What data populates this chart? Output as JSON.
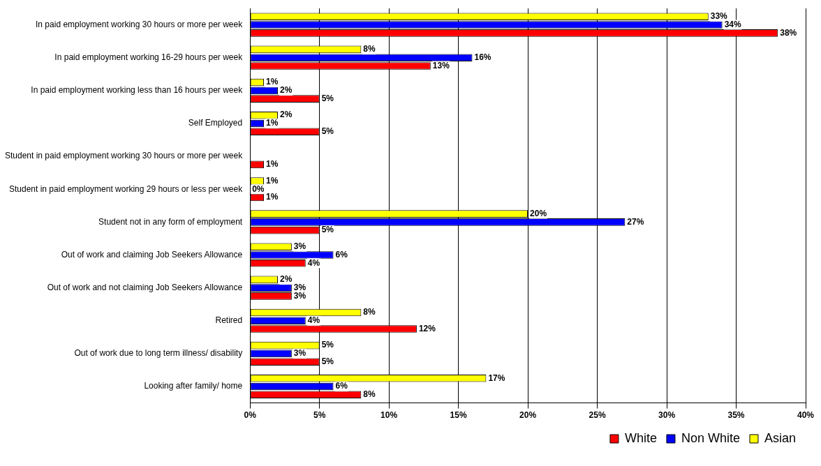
{
  "chart_data": {
    "type": "bar",
    "orientation": "horizontal",
    "categories": [
      "In paid employment working 30 hours or more per week",
      "In paid employment working 16-29 hours per week",
      "In paid employment working less than 16 hours per week",
      "Self Employed",
      "Student in paid employment working 30 hours or more per week",
      "Student in paid employment working 29 hours or less per week",
      "Student not in any form of employment",
      "Out of work and claiming Job Seekers Allowance",
      "Out of work and not claiming Job Seekers Allowance",
      "Retired",
      "Out of work due to long term illness/ disability",
      "Looking after family/ home"
    ],
    "series": [
      {
        "name": "White",
        "color": "#ff0000",
        "values": [
          38,
          13,
          5,
          5,
          1,
          1,
          5,
          4,
          3,
          12,
          5,
          8
        ],
        "value_labels": [
          "38%",
          "13%",
          "5%",
          "5%",
          "1%",
          "1%",
          "5%",
          "4%",
          "3%",
          "12%",
          "5%",
          "8%"
        ]
      },
      {
        "name": "Non White",
        "color": "#0000ff",
        "values": [
          34,
          16,
          2,
          1,
          null,
          0,
          27,
          6,
          3,
          4,
          3,
          6
        ],
        "value_labels": [
          "34%",
          "16%",
          "2%",
          "1%",
          null,
          "0%",
          "27%",
          "6%",
          "3%",
          "4%",
          "3%",
          "6%"
        ]
      },
      {
        "name": "Asian",
        "color": "#ffff00",
        "values": [
          33,
          8,
          1,
          2,
          null,
          1,
          20,
          3,
          2,
          8,
          5,
          17
        ],
        "value_labels": [
          "33%",
          "8%",
          "1%",
          "2%",
          null,
          "1%",
          "20%",
          "3%",
          "2%",
          "8%",
          "5%",
          "17%"
        ]
      }
    ],
    "xlim": [
      0,
      40
    ],
    "xticks": [
      {
        "value": 0,
        "label": "0%"
      },
      {
        "value": 5,
        "label": "5%"
      },
      {
        "value": 10,
        "label": "10%"
      },
      {
        "value": 15,
        "label": "15%"
      },
      {
        "value": 20,
        "label": "20%"
      },
      {
        "value": 25,
        "label": "25%"
      },
      {
        "value": 30,
        "label": "30%"
      },
      {
        "value": 35,
        "label": "35%"
      },
      {
        "value": 40,
        "label": "40%"
      }
    ],
    "grid": "x",
    "legend": "bottom"
  }
}
